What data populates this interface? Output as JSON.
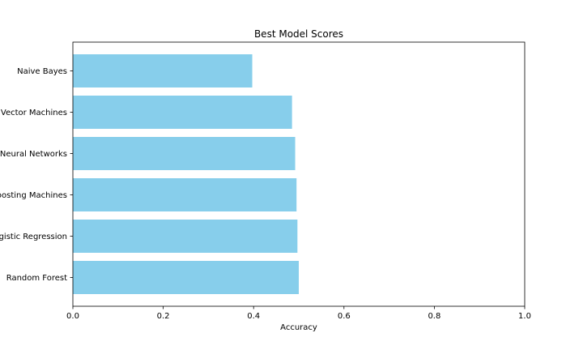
{
  "chart_data": {
    "type": "bar",
    "orientation": "horizontal",
    "title": "Best Model Scores",
    "xlabel": "Accuracy",
    "ylabel": "",
    "xlim": [
      0,
      1.0
    ],
    "x_ticks": [
      0.0,
      0.2,
      0.4,
      0.6,
      0.8,
      1.0
    ],
    "x_tick_labels": [
      "0.0",
      "0.2",
      "0.4",
      "0.6",
      "0.8",
      "1.0"
    ],
    "categories": [
      "Random Forest",
      "Logistic Regression",
      "Gradient Boosting Machines",
      "Neural Networks",
      "Support Vector Machines",
      "Naive Bayes"
    ],
    "values": [
      0.5,
      0.497,
      0.495,
      0.492,
      0.485,
      0.397
    ],
    "bar_color": "#87ceeb",
    "grid": false,
    "legend": "none"
  }
}
